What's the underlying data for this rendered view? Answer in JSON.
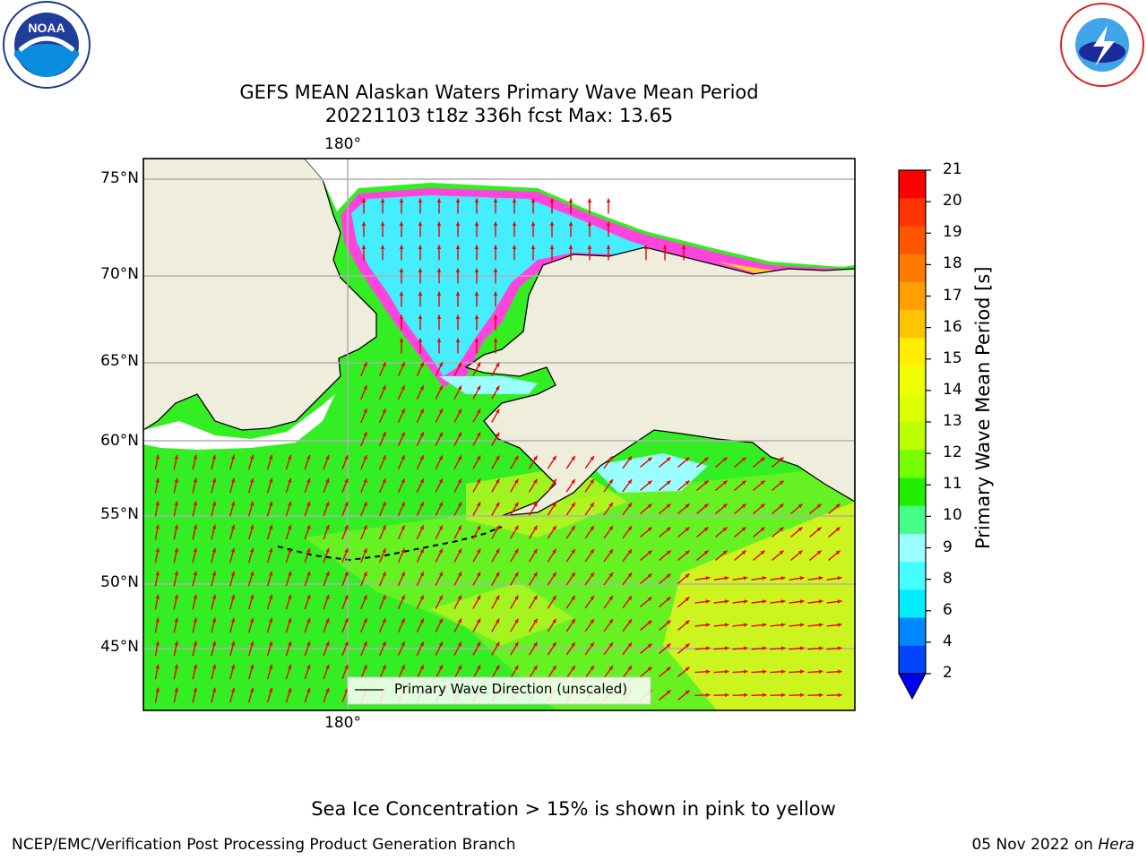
{
  "title": {
    "line1": "GEFS MEAN Alaskan Waters Primary Wave Mean Period",
    "line2": "20221103 t18z 336h fcst   Max: 13.65"
  },
  "logos": {
    "noaa": {
      "text": "NOAA",
      "ring_text": "NATIONAL OCEANIC AND ATMOSPHERIC ADMINISTRATION · U.S. DEPARTMENT OF COMMERCE"
    },
    "nws": {
      "ring_text": "NATIONAL WEATHER SERVICE"
    }
  },
  "map": {
    "lon_labels": [
      "180°",
      "180°"
    ],
    "lat_labels": [
      "75°N",
      "70°N",
      "65°N",
      "60°N",
      "55°N",
      "50°N",
      "45°N"
    ],
    "legend": "Primary Wave Direction (unscaled)",
    "colors": {
      "land": "#efeedd",
      "ocean_main": "#33ee22",
      "ocean_light": "#66f222",
      "ocean_yellow": "#ccf51f",
      "ice_cyan": "#44eeff",
      "ice_edge": "#ff44dd",
      "arrows": "#ee0000"
    }
  },
  "colorbar": {
    "label": "Primary Wave Mean Period [s]",
    "ticks": [
      "21",
      "20",
      "19",
      "18",
      "17",
      "16",
      "15",
      "14",
      "13",
      "12",
      "11",
      "10",
      "9",
      "8",
      "6",
      "4",
      "2"
    ],
    "colors": [
      "#ff0000",
      "#ff3300",
      "#ff5500",
      "#ff7a00",
      "#ffa000",
      "#ffc400",
      "#ffee00",
      "#f0ff00",
      "#ddff00",
      "#bbff00",
      "#77ff00",
      "#22ee00",
      "#44ff88",
      "#99ffff",
      "#44ffff",
      "#00eeff",
      "#0088ff",
      "#0044ff"
    ],
    "extend_color": "#0000ee"
  },
  "footer": {
    "note": "Sea Ice Concentration > 15% is shown in pink to yellow",
    "left": "NCEP/EMC/Verification Post Processing Product Generation Branch",
    "right_date": "05 Nov 2022 on",
    "right_machine": "Hera"
  }
}
